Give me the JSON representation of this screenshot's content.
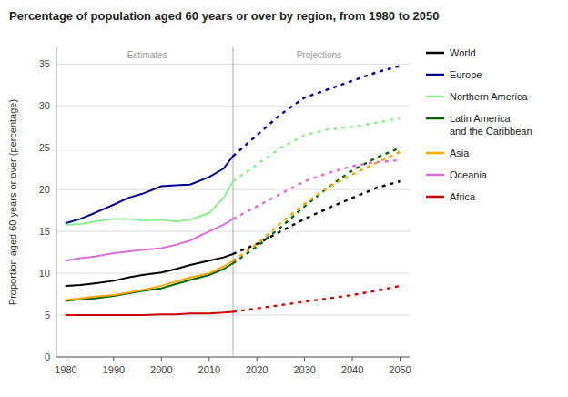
{
  "chart_data": {
    "type": "line",
    "title": "Percentage of population aged 60 years or over by region, from 1980 to 2050",
    "y_label": "Proportion aged 60 years or over (percentage)",
    "x": [
      1980,
      1983,
      1986,
      1990,
      1993,
      1996,
      2000,
      2003,
      2006,
      2010,
      2013,
      2015,
      2020,
      2025,
      2030,
      2035,
      2040,
      2045,
      2050
    ],
    "series": [
      {
        "name": "World",
        "color": "#000000",
        "values": [
          8.5,
          8.6,
          8.8,
          9.1,
          9.5,
          9.8,
          10.1,
          10.5,
          11.0,
          11.5,
          11.9,
          12.3,
          13.5,
          15.0,
          16.5,
          17.8,
          19.0,
          20.2,
          21.0
        ]
      },
      {
        "name": "Europe",
        "color": "#00008B",
        "values": [
          16.0,
          16.5,
          17.2,
          18.2,
          19.0,
          19.5,
          20.4,
          20.5,
          20.6,
          21.5,
          22.5,
          24.0,
          26.5,
          29.0,
          31.0,
          32.0,
          33.0,
          34.0,
          34.8
        ]
      },
      {
        "name": "Northern America",
        "color": "#90EE90",
        "values": [
          15.8,
          15.9,
          16.2,
          16.5,
          16.5,
          16.3,
          16.4,
          16.2,
          16.4,
          17.2,
          19.0,
          21.0,
          23.0,
          25.0,
          26.5,
          27.2,
          27.5,
          28.0,
          28.5
        ]
      },
      {
        "name": "Latin America\nand the Caribbean",
        "color": "#006400",
        "values": [
          6.7,
          6.9,
          7.0,
          7.3,
          7.6,
          7.9,
          8.2,
          8.7,
          9.2,
          9.8,
          10.5,
          11.2,
          13.2,
          15.5,
          18.0,
          20.3,
          22.3,
          23.8,
          25.0
        ]
      },
      {
        "name": "Asia",
        "color": "#FFA500",
        "values": [
          6.8,
          7.0,
          7.2,
          7.4,
          7.7,
          8.0,
          8.5,
          9.0,
          9.5,
          10.0,
          10.8,
          11.5,
          13.5,
          16.0,
          18.3,
          20.3,
          21.8,
          23.2,
          24.5
        ]
      },
      {
        "name": "Oceania",
        "color": "#DA70D6",
        "values": [
          11.5,
          11.8,
          12.0,
          12.4,
          12.6,
          12.8,
          13.0,
          13.4,
          13.9,
          15.0,
          15.8,
          16.5,
          18.0,
          19.5,
          21.0,
          22.0,
          22.8,
          23.3,
          23.5
        ]
      },
      {
        "name": "Africa",
        "color": "#CC0000",
        "values": [
          5.0,
          5.0,
          5.0,
          5.0,
          5.0,
          5.0,
          5.1,
          5.1,
          5.2,
          5.2,
          5.3,
          5.4,
          5.8,
          6.2,
          6.6,
          7.0,
          7.4,
          7.9,
          8.5
        ]
      }
    ],
    "divider": {
      "x": 2015
    },
    "annotations": [
      {
        "text": "Estimates",
        "x": 1997,
        "y": 35.5
      },
      {
        "text": "Projections",
        "x": 2033,
        "y": 35.5
      }
    ],
    "xlim": [
      1978,
      2052
    ],
    "xticks": [
      1980,
      1990,
      2000,
      2010,
      2020,
      2030,
      2040,
      2050
    ],
    "ylim": [
      0,
      37
    ],
    "yticks": [
      0,
      5,
      10,
      15,
      20,
      25,
      30,
      35
    ],
    "grid": true,
    "legend": "right"
  }
}
